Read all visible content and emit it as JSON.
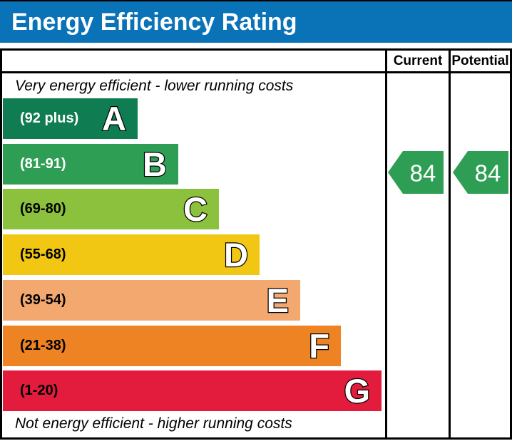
{
  "header": {
    "title": "Energy Efficiency Rating",
    "background": "#0a72b6"
  },
  "columns": {
    "current": "Current",
    "potential": "Potential"
  },
  "notes": {
    "top": "Very energy efficient - lower running costs",
    "bottom": "Not energy efficient - higher running costs"
  },
  "bands": [
    {
      "letter": "A",
      "range": "(92 plus)",
      "color": "#107c52",
      "label_color": "#ffffff"
    },
    {
      "letter": "B",
      "range": "(81-91)",
      "color": "#2f9e55",
      "label_color": "#ffffff"
    },
    {
      "letter": "C",
      "range": "(69-80)",
      "color": "#8cc13e",
      "label_color": "#000000"
    },
    {
      "letter": "D",
      "range": "(55-68)",
      "color": "#f2c713",
      "label_color": "#000000"
    },
    {
      "letter": "E",
      "range": "(39-54)",
      "color": "#f2a86e",
      "label_color": "#000000"
    },
    {
      "letter": "F",
      "range": "(21-38)",
      "color": "#ee8324",
      "label_color": "#000000"
    },
    {
      "letter": "G",
      "range": "(1-20)",
      "color": "#e31c3d",
      "label_color": "#000000"
    }
  ],
  "ratings": {
    "current": {
      "value": "84",
      "band": "B",
      "color": "#2f9e55"
    },
    "potential": {
      "value": "84",
      "band": "B",
      "color": "#2f9e55"
    }
  },
  "chart_data": {
    "type": "bar",
    "title": "Energy Efficiency Rating",
    "categories": [
      "A",
      "B",
      "C",
      "D",
      "E",
      "F",
      "G"
    ],
    "band_ranges": [
      "92 plus",
      "81-91",
      "69-80",
      "55-68",
      "39-54",
      "21-38",
      "1-20"
    ],
    "band_colors": [
      "#107c52",
      "#2f9e55",
      "#8cc13e",
      "#f2c713",
      "#f2a86e",
      "#ee8324",
      "#e31c3d"
    ],
    "top_label": "Very energy efficient - lower running costs",
    "bottom_label": "Not energy efficient - higher running costs",
    "value_columns": [
      "Current",
      "Potential"
    ],
    "current_rating": 84,
    "current_band": "B",
    "potential_rating": 84,
    "potential_band": "B",
    "scale_min": 1,
    "scale_max": 100
  }
}
